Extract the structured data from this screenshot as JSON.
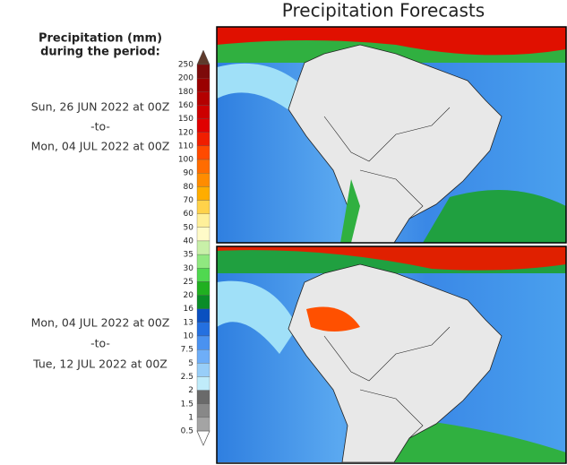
{
  "title": "Precipitation Forecasts",
  "legend": {
    "title_lines": [
      "Precipitation (mm)",
      "during the period:"
    ],
    "labels": [
      250,
      200,
      180,
      160,
      150,
      120,
      110,
      100,
      90,
      80,
      70,
      60,
      50,
      40,
      35,
      30,
      25,
      20,
      16,
      13,
      10,
      7.5,
      5,
      2.5,
      2,
      1.5,
      1,
      0.5
    ],
    "colors": [
      "#5e3a2c",
      "#7d0a0a",
      "#9a0000",
      "#b40000",
      "#cc0000",
      "#e00000",
      "#f01e00",
      "#ff4a00",
      "#ff6c00",
      "#ff8c00",
      "#ffad00",
      "#ffd24a",
      "#fff09a",
      "#fffbc8",
      "#c8f0a8",
      "#90e880",
      "#50d850",
      "#20b020",
      "#0a8c28",
      "#0a50c0",
      "#2470e0",
      "#4a92f0",
      "#6eaef8",
      "#98cef8",
      "#c0ecfa",
      "#6a6a6a",
      "#888888",
      "#a4a4a4",
      "#c0c0c0",
      "#ffffff"
    ]
  },
  "panels": [
    {
      "period": [
        "Sun, 26 JUN 2022 at 00Z",
        "-to-",
        "Mon, 04 JUL 2022 at 00Z"
      ]
    },
    {
      "period": [
        "Mon, 04 JUL 2022 at 00Z",
        "-to-",
        "Tue, 12 JUL 2022 at 00Z"
      ]
    }
  ]
}
